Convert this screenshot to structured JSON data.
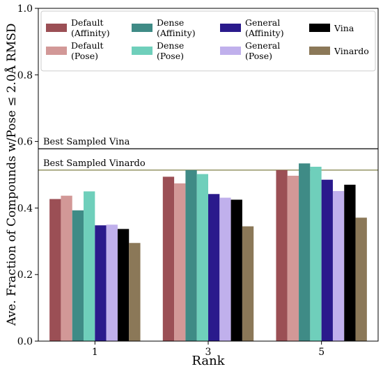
{
  "chart_data": {
    "type": "bar",
    "xlabel": "Rank",
    "ylabel": "Ave. Fraction of Compounds w/Pose ≤ 2.0Å RMSD",
    "ylim": [
      0.0,
      1.0
    ],
    "yticks": [
      "0.0",
      "0.2",
      "0.4",
      "0.6",
      "0.8",
      "1.0"
    ],
    "categories": [
      "1",
      "3",
      "5"
    ],
    "grid": false,
    "legend_position": "top",
    "series": [
      {
        "name": "Default (Affinity)",
        "line1": "Default",
        "line2": "(Affinity)",
        "color": "#9b4f55",
        "values": [
          0.427,
          0.494,
          0.514
        ]
      },
      {
        "name": "Default (Pose)",
        "line1": "Default",
        "line2": "(Pose)",
        "color": "#d29897",
        "values": [
          0.437,
          0.474,
          0.497
        ]
      },
      {
        "name": "Dense (Affinity)",
        "line1": "Dense",
        "line2": "(Affinity)",
        "color": "#3f8b86",
        "values": [
          0.393,
          0.514,
          0.534
        ]
      },
      {
        "name": "Dense (Pose)",
        "line1": "Dense",
        "line2": "(Pose)",
        "color": "#6fcfbb",
        "values": [
          0.45,
          0.502,
          0.524
        ]
      },
      {
        "name": "General (Affinity)",
        "line1": "General",
        "line2": "(Affinity)",
        "color": "#2a1a8c",
        "values": [
          0.348,
          0.442,
          0.485
        ]
      },
      {
        "name": "General (Pose)",
        "line1": "General",
        "line2": "(Pose)",
        "color": "#c0b0ec",
        "values": [
          0.35,
          0.431,
          0.451
        ]
      },
      {
        "name": "Vina",
        "line1": "Vina",
        "line2": "",
        "color": "#000000",
        "values": [
          0.337,
          0.425,
          0.47
        ]
      },
      {
        "name": "Vinardo",
        "line1": "Vinardo",
        "line2": "",
        "color": "#8b7858",
        "values": [
          0.295,
          0.345,
          0.371
        ]
      }
    ],
    "reference_lines": [
      {
        "label": "Best Sampled Vina",
        "value": 0.578,
        "color": "#000000"
      },
      {
        "label": "Best Sampled Vinardo",
        "value": 0.514,
        "color": "#8a8a55"
      }
    ]
  }
}
